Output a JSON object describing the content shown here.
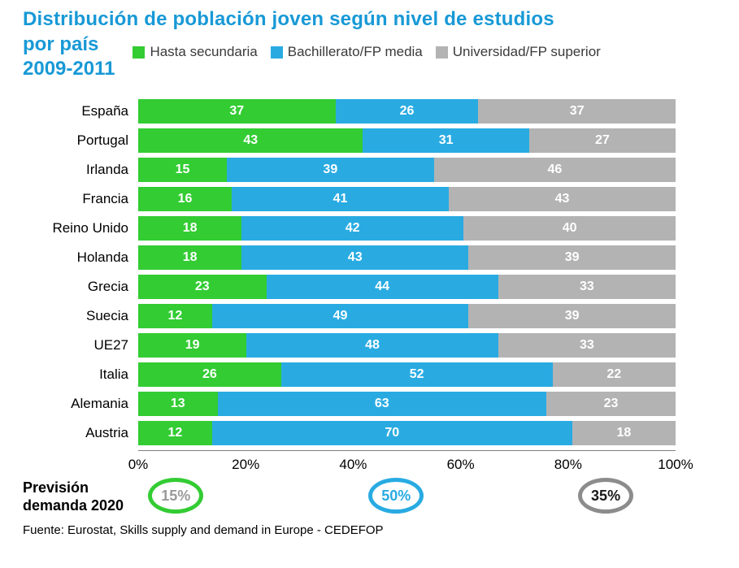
{
  "title": {
    "line1": "Distribución de población joven según nivel de estudios",
    "line2": "por país",
    "line3": "2009-2011"
  },
  "colors": {
    "title_blue": "#1899d6",
    "green": "#33cc33",
    "blue": "#29abe2",
    "gray": "#b3b3b3"
  },
  "legend": [
    {
      "label": "Hasta secundaria",
      "color": "#33cc33"
    },
    {
      "label": "Bachillerato/FP media",
      "color": "#29abe2"
    },
    {
      "label": "Universidad/FP superior",
      "color": "#b3b3b3"
    }
  ],
  "chart_data": {
    "type": "bar",
    "orientation": "horizontal",
    "stacked": true,
    "title": "Distribución de población joven según nivel de estudios por país 2009-2011",
    "categories": [
      "España",
      "Portugal",
      "Irlanda",
      "Francia",
      "Reino Unido",
      "Holanda",
      "Grecia",
      "Suecia",
      "UE27",
      "Italia",
      "Alemania",
      "Austria"
    ],
    "series": [
      {
        "name": "Hasta secundaria",
        "color": "#33cc33",
        "values": [
          37,
          43,
          15,
          16,
          18,
          18,
          23,
          12,
          19,
          26,
          13,
          12
        ]
      },
      {
        "name": "Bachillerato/FP media",
        "color": "#29abe2",
        "values": [
          26,
          31,
          39,
          41,
          42,
          43,
          44,
          49,
          48,
          52,
          63,
          70
        ]
      },
      {
        "name": "Universidad/FP superior",
        "color": "#b3b3b3",
        "values": [
          37,
          27,
          46,
          43,
          40,
          39,
          33,
          39,
          33,
          22,
          23,
          18
        ]
      }
    ],
    "x_ticks": [
      "0%",
      "20%",
      "40%",
      "60%",
      "80%",
      "100%"
    ],
    "xlim": [
      0,
      100
    ],
    "grid": false,
    "legend_position": "top",
    "value_labels": "inside-white-bold"
  },
  "forecast": {
    "label_line1": "Previsión",
    "label_line2": "demanda 2020",
    "items": [
      {
        "value": "15%",
        "ring_color": "#33cc33",
        "text_color": "#9a9a9a",
        "position_pct": 7
      },
      {
        "value": "50%",
        "ring_color": "#29abe2",
        "text_color": "#29abe2",
        "position_pct": 48
      },
      {
        "value": "35%",
        "ring_color": "#8c8c8c",
        "text_color": "#1a1a1a",
        "position_pct": 87
      }
    ]
  },
  "source": "Fuente: Eurostat, Skills supply and demand in Europe - CEDEFOP"
}
